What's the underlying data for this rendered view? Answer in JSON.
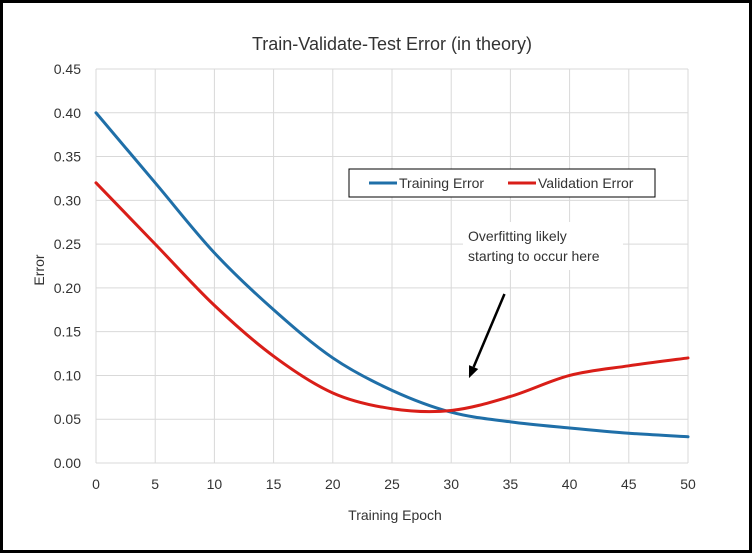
{
  "chart_data": {
    "type": "line",
    "title": "Train-Validate-Test  Error (in theory)",
    "xlabel": "Training Epoch",
    "ylabel": "Error",
    "xlim": [
      0,
      50
    ],
    "ylim": [
      0,
      0.45
    ],
    "x_ticks": [
      0,
      5,
      10,
      15,
      20,
      25,
      30,
      35,
      40,
      45,
      50
    ],
    "x_tick_labels": [
      "0",
      "5",
      "10",
      "15",
      "20",
      "25",
      "30",
      "35",
      "40",
      "45",
      "50"
    ],
    "y_ticks": [
      0,
      0.05,
      0.1,
      0.15,
      0.2,
      0.25,
      0.3,
      0.35,
      0.4,
      0.45
    ],
    "y_tick_labels": [
      "0.00",
      "0.05",
      "0.10",
      "0.15",
      "0.20",
      "0.25",
      "0.30",
      "0.35",
      "0.40",
      "0.45"
    ],
    "grid": true,
    "legend_position": "top-right",
    "x": [
      0,
      5,
      10,
      15,
      20,
      25,
      30,
      35,
      40,
      45,
      50
    ],
    "series": [
      {
        "name": "Training Error",
        "color": "#1F6FA8",
        "values": [
          0.4,
          0.32,
          0.24,
          0.175,
          0.12,
          0.083,
          0.058,
          0.047,
          0.04,
          0.034,
          0.03
        ]
      },
      {
        "name": "Validation Error",
        "color": "#D91E18",
        "values": [
          0.32,
          0.25,
          0.18,
          0.122,
          0.08,
          0.062,
          0.06,
          0.076,
          0.1,
          0.111,
          0.12
        ]
      }
    ],
    "annotation": {
      "lines": [
        "Overfitting likely",
        "starting to occur here"
      ],
      "arrow_from": [
        34.5,
        0.193
      ],
      "arrow_to": [
        31.5,
        0.097
      ]
    }
  }
}
